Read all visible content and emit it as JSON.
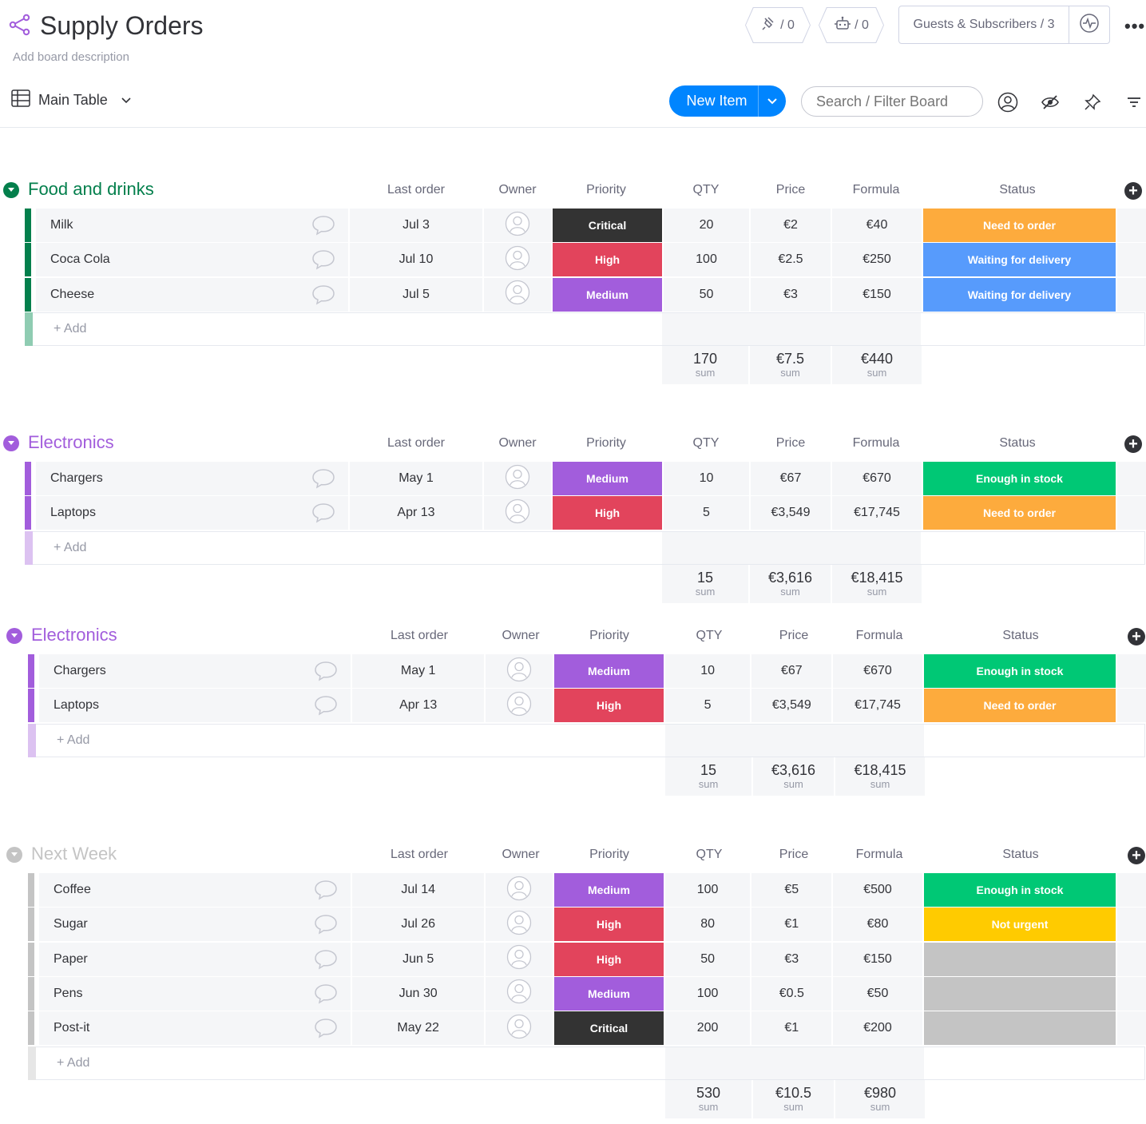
{
  "board": {
    "title": "Supply Orders",
    "description": "Add board description",
    "integrations_count": "/ 0",
    "automations_count": "/ 0",
    "guests_label": "Guests & Subscribers / 3"
  },
  "toolbar": {
    "view_name": "Main Table",
    "new_item_label": "New Item",
    "search_placeholder": "Search / Filter Board"
  },
  "columns": {
    "last_order": "Last order",
    "owner": "Owner",
    "priority": "Priority",
    "qty": "QTY",
    "price": "Price",
    "formula": "Formula",
    "status": "Status"
  },
  "add_label": "+ Add",
  "sum_label": "sum",
  "colors": {
    "critical": "#333333",
    "high": "#e2445c",
    "medium": "#a25ddc",
    "need_to_order": "#fdab3d",
    "waiting": "#579bfc",
    "enough": "#00c875",
    "not_urgent": "#ffcb00",
    "empty": "#c4c4c4",
    "accent": "#0085ff"
  },
  "groups": [
    {
      "name": "Food and drinks",
      "color": "#037f4c",
      "add_color": "#8fccb2",
      "items": [
        {
          "name": "Milk",
          "last_order": "Jul 3",
          "priority": "Critical",
          "priority_color": "#333333",
          "qty": "20",
          "price": "€2",
          "formula": "€40",
          "status": "Need to order",
          "status_color": "#fdab3d"
        },
        {
          "name": "Coca Cola",
          "last_order": "Jul 10",
          "priority": "High",
          "priority_color": "#e2445c",
          "qty": "100",
          "price": "€2.5",
          "formula": "€250",
          "status": "Waiting for delivery",
          "status_color": "#579bfc"
        },
        {
          "name": "Cheese",
          "last_order": "Jul 5",
          "priority": "Medium",
          "priority_color": "#a25ddc",
          "qty": "50",
          "price": "€3",
          "formula": "€150",
          "status": "Waiting for delivery",
          "status_color": "#579bfc"
        }
      ],
      "sums": {
        "qty": "170",
        "price": "€7.5",
        "formula": "€440"
      }
    },
    {
      "name": "Electronics",
      "color": "#a25ddc",
      "add_color": "#dcc2f1",
      "items": [
        {
          "name": "Chargers",
          "last_order": "May 1",
          "priority": "Medium",
          "priority_color": "#a25ddc",
          "qty": "10",
          "price": "€67",
          "formula": "€670",
          "status": "Enough in stock",
          "status_color": "#00c875"
        },
        {
          "name": "Laptops",
          "last_order": "Apr 13",
          "priority": "High",
          "priority_color": "#e2445c",
          "qty": "5",
          "price": "€3,549",
          "formula": "€17,745",
          "status": "Need to order",
          "status_color": "#fdab3d"
        }
      ],
      "sums": {
        "qty": "15",
        "price": "€3,616",
        "formula": "€18,415"
      }
    },
    {
      "name": "Electronics",
      "color": "#a25ddc",
      "add_color": "#dcc2f1",
      "items": [
        {
          "name": "Chargers",
          "last_order": "May 1",
          "priority": "Medium",
          "priority_color": "#a25ddc",
          "qty": "10",
          "price": "€67",
          "formula": "€670",
          "status": "Enough in stock",
          "status_color": "#00c875"
        },
        {
          "name": "Laptops",
          "last_order": "Apr 13",
          "priority": "High",
          "priority_color": "#e2445c",
          "qty": "5",
          "price": "€3,549",
          "formula": "€17,745",
          "status": "Need to order",
          "status_color": "#fdab3d"
        }
      ],
      "sums": {
        "qty": "15",
        "price": "€3,616",
        "formula": "€18,415"
      }
    },
    {
      "name": "Next Week",
      "color": "#c4c4c4",
      "add_color": "#e6e6e6",
      "items": [
        {
          "name": "Coffee",
          "last_order": "Jul 14",
          "priority": "Medium",
          "priority_color": "#a25ddc",
          "qty": "100",
          "price": "€5",
          "formula": "€500",
          "status": "Enough in stock",
          "status_color": "#00c875"
        },
        {
          "name": "Sugar",
          "last_order": "Jul 26",
          "priority": "High",
          "priority_color": "#e2445c",
          "qty": "80",
          "price": "€1",
          "formula": "€80",
          "status": "Not urgent",
          "status_color": "#ffcb00"
        },
        {
          "name": "Paper",
          "last_order": "Jun 5",
          "priority": "High",
          "priority_color": "#e2445c",
          "qty": "50",
          "price": "€3",
          "formula": "€150",
          "status": "",
          "status_color": "#c4c4c4"
        },
        {
          "name": "Pens",
          "last_order": "Jun 30",
          "priority": "Medium",
          "priority_color": "#a25ddc",
          "qty": "100",
          "price": "€0.5",
          "formula": "€50",
          "status": "",
          "status_color": "#c4c4c4"
        },
        {
          "name": "Post-it",
          "last_order": "May 22",
          "priority": "Critical",
          "priority_color": "#333333",
          "qty": "200",
          "price": "€1",
          "formula": "€200",
          "status": "",
          "status_color": "#c4c4c4"
        }
      ],
      "sums": {
        "qty": "530",
        "price": "€10.5",
        "formula": "€980"
      }
    }
  ]
}
